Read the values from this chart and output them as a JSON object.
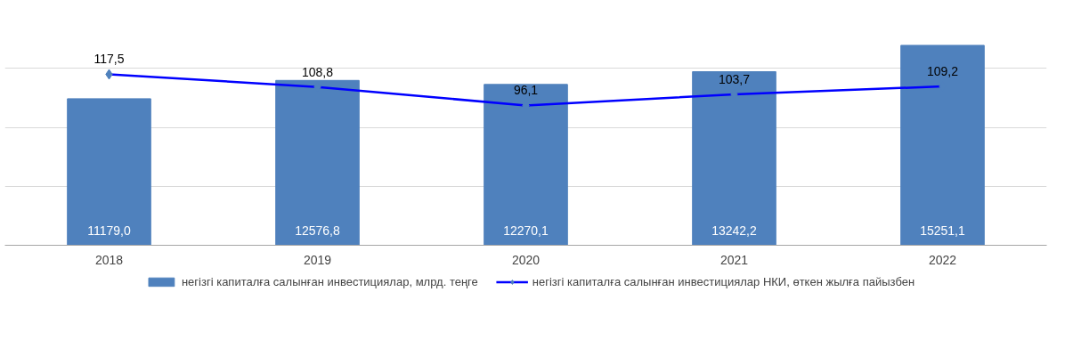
{
  "chart_data": {
    "type": "bar",
    "categories": [
      "2018",
      "2019",
      "2020",
      "2021",
      "2022"
    ],
    "series": [
      {
        "name": "негізгі капиталға салынған инвестициялар, млрд. теңге",
        "color": "#4f81bd",
        "values": [
          11179.0,
          12576.8,
          12270.1,
          13242.2,
          15251.1
        ],
        "value_labels": [
          "11179,0",
          "12576,8",
          "12270,1",
          "13242,2",
          "15251,1"
        ]
      },
      {
        "name": "негізгі капиталға салынған инвестициялар НКИ, өткен жылға пайызбен",
        "type": "line",
        "axis": "y2",
        "color": "#0000ff",
        "marker": "diamond",
        "values": [
          117.5,
          108.8,
          96.1,
          103.7,
          109.2
        ],
        "value_labels": [
          "117,5",
          "108,8",
          "96,1",
          "103,7",
          "109,2"
        ]
      }
    ],
    "grid": "y",
    "legend": "bottom",
    "tick_labels": "x"
  }
}
